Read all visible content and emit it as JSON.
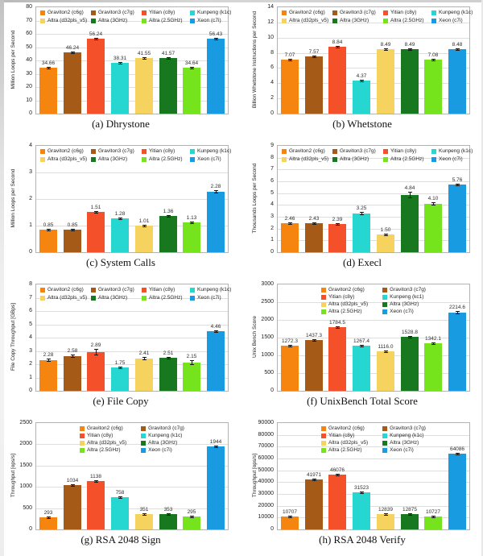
{
  "figure": {
    "description": "Grid of eight benchmark bar charts comparing processors",
    "palette": {
      "graviton2": "#F6850F",
      "graviton3": "#A55A17",
      "yitian": "#F4502A",
      "kunpeng": "#26D7D1",
      "altra_d32pls_v5": "#F6D35E",
      "altra_3ghz": "#17781F",
      "altra_2_5ghz": "#76E41C",
      "xeon": "#189BE1"
    },
    "colors": [
      "#F6850F",
      "#A55A17",
      "#F4502A",
      "#26D7D1",
      "#F6D35E",
      "#17781F",
      "#76E41C",
      "#189BE1"
    ]
  },
  "chart_data": [
    {
      "id": "a",
      "type": "bar",
      "caption": "(a) Dhrystone",
      "ylabel": "Million Loops per Second",
      "ylim": [
        0,
        80
      ],
      "ytick_step": 10,
      "grid": true,
      "legend_layout": "4x2",
      "legend_position": "top-inside",
      "legend": [
        "Graviton2 (c6g)",
        "Graviton3 (c7g)",
        "Yitian (c8y)",
        "Kunpeng (k1c)",
        "Altra (d32pls_v5)",
        "Altra (3GHz)",
        "Altra (2.5GHz)",
        "Xeon (c7i)"
      ],
      "values": [
        34.66,
        46.24,
        56.24,
        38.31,
        41.55,
        41.57,
        34.64,
        56.43
      ],
      "value_labels": [
        "34.66",
        "46.24",
        "56.24",
        "38.31",
        "41.55",
        "41.57",
        "34.64",
        "56.43"
      ],
      "errors": [
        0.5,
        0.5,
        0.6,
        0.6,
        0.5,
        0.5,
        0.4,
        0.7
      ]
    },
    {
      "id": "b",
      "type": "bar",
      "caption": "(b) Whetstone",
      "ylabel": "Billion Whetstone Instructions per Second",
      "ylim": [
        0,
        14
      ],
      "ytick_step": 2,
      "grid": true,
      "legend_layout": "4x2",
      "legend_position": "top-inside",
      "legend": [
        "Graviton2 (c6g)",
        "Graviton3 (c7g)",
        "Yitian (c8y)",
        "Kunpeng (k1c)",
        "Altra (d32pls_v5)",
        "Altra (3GHz)",
        "Altra (2.5GHz)",
        "Xeon (c7i)"
      ],
      "values": [
        7.07,
        7.57,
        8.84,
        4.37,
        8.49,
        8.49,
        7.08,
        8.48
      ],
      "value_labels": [
        "7.07",
        "7.57",
        "8.84",
        "4.37",
        "8.49",
        "8.49",
        "7.08",
        "8.48"
      ],
      "errors": [
        0.06,
        0.06,
        0.12,
        0.08,
        0.07,
        0.07,
        0.08,
        0.12
      ]
    },
    {
      "id": "c",
      "type": "bar",
      "caption": "(c) System Calls",
      "ylabel": "Million Loops per Second",
      "ylim": [
        0,
        4
      ],
      "ytick_step": 1,
      "grid": true,
      "legend_layout": "4x2",
      "legend_position": "top-inside",
      "legend": [
        "Graviton2 (c6g)",
        "Graviton3 (c7g)",
        "Yitian (c8y)",
        "Kunpeng (k1c)",
        "Altra (d32pls_v5)",
        "Altra (3GHz)",
        "Altra (2.5GHz)",
        "Xeon (c7i)"
      ],
      "values": [
        0.85,
        0.85,
        1.51,
        1.28,
        1.01,
        1.36,
        1.13,
        2.28
      ],
      "value_labels": [
        "0.85",
        "0.85",
        "1.51",
        "1.28",
        "1.01",
        "1.36",
        "1.13",
        "2.28"
      ],
      "errors": [
        0.02,
        0.02,
        0.04,
        0.03,
        0.025,
        0.035,
        0.025,
        0.05
      ]
    },
    {
      "id": "d",
      "type": "bar",
      "caption": "(d) Execl",
      "ylabel": "Thousands Loops per Second",
      "ylim": [
        0,
        9
      ],
      "ytick_step": 1,
      "grid": true,
      "legend_layout": "4x2",
      "legend_position": "top-inside",
      "legend": [
        "Graviton2 (c6g)",
        "Graviton3 (c7g)",
        "Yitian (c8y)",
        "Kunpeng (k1c)",
        "Altra (d32pls_v5)",
        "Altra (3GHz)",
        "Altra (2.5GHz)",
        "Xeon (c7i)"
      ],
      "values": [
        2.46,
        2.43,
        2.39,
        3.25,
        1.5,
        4.84,
        4.1,
        5.76
      ],
      "value_labels": [
        "2.46",
        "2.43",
        "2.39",
        "3.25",
        "1.50",
        "4.84",
        "4.10",
        "5.76"
      ],
      "errors": [
        0.04,
        0.04,
        0.04,
        0.12,
        0.04,
        0.3,
        0.15,
        0.07
      ]
    },
    {
      "id": "e",
      "type": "bar",
      "caption": "(e) File Copy",
      "ylabel": "File Copy Throughput [GBps]",
      "ylim": [
        0,
        8
      ],
      "ytick_step": 1,
      "grid": true,
      "legend_layout": "4x2",
      "legend_position": "top-inside",
      "legend": [
        "Graviton2 (c6g)",
        "Graviton3 (c7g)",
        "Yitian (c8y)",
        "Kunpeng (k1c)",
        "Altra (d32pls_v5)",
        "Altra (3GHz)",
        "Altra (2.5GHz)",
        "Xeon (c7i)"
      ],
      "values": [
        2.28,
        2.58,
        2.89,
        1.75,
        2.41,
        2.51,
        2.15,
        4.46
      ],
      "value_labels": [
        "2.28",
        "2.58",
        "2.89",
        "1.75",
        "2.41",
        "2.51",
        "2.15",
        "4.46"
      ],
      "errors": [
        0.12,
        0.1,
        0.25,
        0.05,
        0.13,
        0.07,
        0.18,
        0.07
      ]
    },
    {
      "id": "f",
      "type": "bar",
      "caption": "(f) UnixBench Total Score",
      "ylabel": "Unix Bench Score",
      "ylim": [
        0,
        3000
      ],
      "ytick_step": 500,
      "grid": true,
      "legend_layout": "2x4",
      "legend_position": "top-inside",
      "legend": [
        "Graviton2 (c6g)",
        "Graviton3 (c7g)",
        "Yitian (c8y)",
        "Kunpeng (kc1)",
        "Altra (d32pls_v5)",
        "Altra (3GHz)",
        "Altra (2.5GHz)",
        "Xeon (c7i)"
      ],
      "values": [
        1272.3,
        1437.3,
        1784.5,
        1267.4,
        1116.0,
        1528.8,
        1342.1,
        2214.6
      ],
      "value_labels": [
        "1272.3",
        "1437.3",
        "1784.5",
        "1267.4",
        "1116.0",
        "1528.8",
        "1342.1",
        "2214.6"
      ],
      "errors": [
        15,
        15,
        30,
        15,
        15,
        30,
        18,
        35
      ]
    },
    {
      "id": "g",
      "type": "bar",
      "caption": "(g) RSA 2048 Sign",
      "ylabel": "Throughput [ops/s]",
      "ylim": [
        0,
        2500
      ],
      "ytick_step": 500,
      "grid": true,
      "legend_layout": "2x4",
      "legend_position": "top-inside",
      "legend": [
        "Graviton2 (c6g)",
        "Graviton3 (c7g)",
        "Yitian (c8y)",
        "Kunpeng (k1c)",
        "Altra (d32pls_v5)",
        "Altra (3GHz)",
        "Altra (2.5GHz)",
        "Xeon (c7i)"
      ],
      "values": [
        293,
        1034,
        1138,
        758,
        351,
        353,
        295,
        1944
      ],
      "value_labels": [
        "293",
        "1034",
        "1138",
        "758",
        "351",
        "353",
        "295",
        "1944"
      ],
      "errors": [
        6,
        10,
        10,
        14,
        7,
        7,
        6,
        18
      ]
    },
    {
      "id": "h",
      "type": "bar",
      "caption": "(h) RSA 2048 Verify",
      "ylabel": "Throughput [ops/s]",
      "ylim": [
        0,
        90000
      ],
      "ytick_step": 10000,
      "grid": true,
      "legend_layout": "2x4",
      "legend_position": "top-inside",
      "legend": [
        "Graviton2 (c6g)",
        "Graviton3 (c7g)",
        "Yitian (c8y)",
        "Kunpeng (k1c)",
        "Altra (d32pls_v5)",
        "Altra (3GHz)",
        "Altra (2.5GHz)",
        "Xeon (c7i)"
      ],
      "values": [
        10707,
        41971,
        46076,
        31523,
        12839,
        12875,
        10727,
        64086
      ],
      "value_labels": [
        "10707",
        "41971",
        "46076",
        "31523",
        "12839",
        "12875",
        "10727",
        "64086"
      ],
      "errors": [
        280,
        550,
        650,
        450,
        280,
        280,
        280,
        900
      ]
    }
  ]
}
